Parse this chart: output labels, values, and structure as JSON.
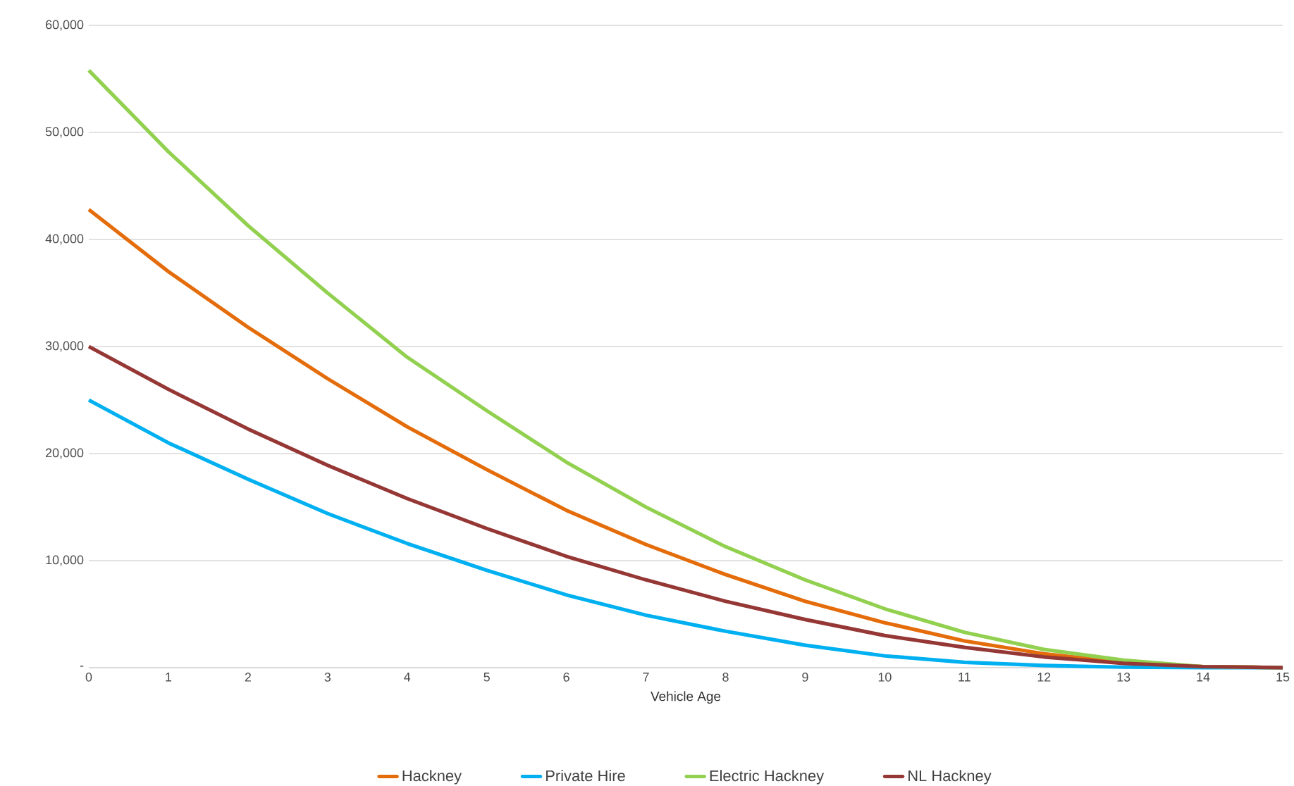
{
  "chart_data": {
    "type": "line",
    "xlabel": "Vehicle Age",
    "x": [
      0,
      1,
      2,
      3,
      4,
      5,
      6,
      7,
      8,
      9,
      10,
      11,
      12,
      13,
      14,
      15
    ],
    "series": [
      {
        "name": "Hackney",
        "color": "#e46c0a",
        "values": [
          42800,
          37000,
          31800,
          27000,
          22500,
          18500,
          14700,
          11500,
          8700,
          6200,
          4200,
          2500,
          1300,
          500,
          100,
          0
        ]
      },
      {
        "name": "Private Hire",
        "color": "#00b0f0",
        "values": [
          25000,
          21000,
          17600,
          14400,
          11600,
          9100,
          6800,
          4900,
          3400,
          2100,
          1100,
          500,
          200,
          50,
          0,
          0
        ]
      },
      {
        "name": "Electric Hackney",
        "color": "#92d050",
        "values": [
          55800,
          48200,
          41300,
          35000,
          29000,
          24000,
          19200,
          15000,
          11300,
          8200,
          5500,
          3300,
          1700,
          700,
          100,
          0
        ]
      },
      {
        "name": "NL Hackney",
        "color": "#953735",
        "values": [
          30000,
          26000,
          22300,
          18900,
          15800,
          13000,
          10400,
          8200,
          6200,
          4500,
          3000,
          1900,
          1000,
          400,
          100,
          0
        ]
      }
    ],
    "xlim": [
      0,
      15
    ],
    "xticks": [
      0,
      1,
      2,
      3,
      4,
      5,
      6,
      7,
      8,
      9,
      10,
      11,
      12,
      13,
      14,
      15
    ],
    "ylim": [
      0,
      60000
    ],
    "yticks": [
      {
        "value": 0,
        "label": "-"
      },
      {
        "value": 10000,
        "label": "10,000"
      },
      {
        "value": 20000,
        "label": "20,000"
      },
      {
        "value": 30000,
        "label": "30,000"
      },
      {
        "value": 40000,
        "label": "40,000"
      },
      {
        "value": 50000,
        "label": "50,000"
      },
      {
        "value": 60000,
        "label": "60,000"
      }
    ],
    "grid": "y",
    "legend": "bottom",
    "marker": "none",
    "line_style": "solid"
  }
}
